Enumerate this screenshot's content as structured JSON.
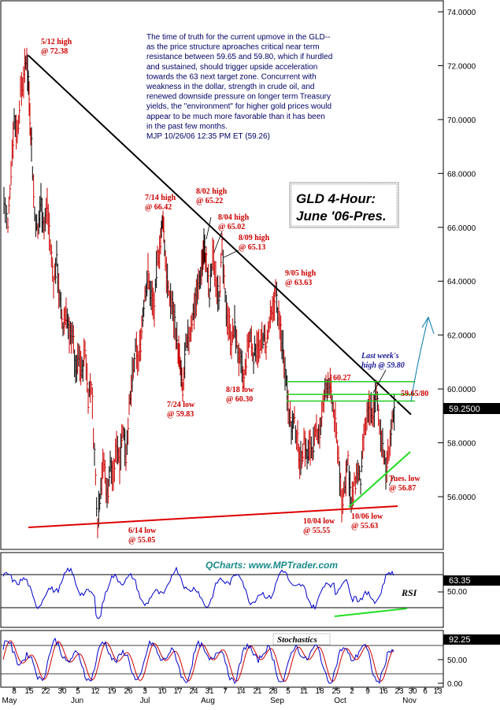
{
  "chart_data": [
    {
      "type": "line",
      "name": "price-panel",
      "title": "GLD 4-Hour:\nJune '06-Pres.",
      "ylim": [
        54.5,
        74.0
      ],
      "y_ticks": [
        "74.0000",
        "72.0000",
        "70.0000",
        "68.0000",
        "66.0000",
        "64.0000",
        "62.0000",
        "60.0000",
        "58.0000",
        "56.0000"
      ],
      "y_tick_values": [
        74,
        72,
        70,
        68,
        66,
        64,
        62,
        60,
        58,
        56
      ],
      "last_price_label": "59.2500",
      "last_price": 59.25,
      "x_tick_labels": [
        "8",
        "15",
        "22",
        "30",
        "5",
        "12",
        "19",
        "26",
        "3",
        "10",
        "17",
        "24",
        "31",
        "7",
        "14",
        "21",
        "28",
        "5",
        "11",
        "18",
        "25",
        "2",
        "9",
        "16",
        "23",
        "30",
        "6",
        "13"
      ],
      "month_labels": [
        "May",
        "Jun",
        "Jul",
        "Aug",
        "Sep",
        "Oct",
        "Nov"
      ],
      "commentary": [
        "The time of truth for the current upmove in the GLD--",
        "as the price structure aproaches critical near term",
        "resistance between 59.65 and 59.80, which if hurdled",
        "and sustained, should trigger upside acceleration",
        "towards the 63 next target zone. Concurrent with",
        "weakness in the dollar, strength in crude oil, and",
        "renewed downside pressure on longer term Treasury",
        "yields,  the \"environment\" for higher gold prices would",
        "appear to be much more favorable than it has been",
        "in the past few months.",
        "MJP 10/26/06  12:35 PM ET    (59.26)"
      ],
      "annotations": [
        {
          "text": [
            "5/12 high",
            "@ 72.38"
          ],
          "color": "red"
        },
        {
          "text": [
            "7/14 high",
            "@ 66.42"
          ],
          "color": "red"
        },
        {
          "text": [
            "8/02 high",
            "@ 65.22"
          ],
          "color": "red"
        },
        {
          "text": [
            "8/04 high",
            "@ 65.02"
          ],
          "color": "red"
        },
        {
          "text": [
            "8/09 high",
            "@ 65.13"
          ],
          "color": "red"
        },
        {
          "text": [
            "9/05 high",
            "@ 63.63"
          ],
          "color": "red"
        },
        {
          "text": [
            "7/24 low",
            "@ 59.83"
          ],
          "color": "red"
        },
        {
          "text": [
            "8/18 low",
            "@ 60.30"
          ],
          "color": "red"
        },
        {
          "text": [
            "6/14 low",
            "@ 55.05"
          ],
          "color": "red"
        },
        {
          "text": [
            "10/04 low",
            "@ 55.55"
          ],
          "color": "red"
        },
        {
          "text": [
            "10/06 low",
            "@ 55.63"
          ],
          "color": "red"
        },
        {
          "text": [
            "Tues. low",
            "@ 56.87"
          ],
          "color": "red"
        },
        {
          "text": [
            "60.27"
          ],
          "color": "red"
        },
        {
          "text": [
            "59.65/80"
          ],
          "color": "red"
        },
        {
          "text": [
            "Last week's",
            "high @ 59.80"
          ],
          "color": "blue"
        }
      ],
      "key_points": [
        {
          "date": "5/12",
          "value": 72.38
        },
        {
          "date": "6/14",
          "value": 55.05
        },
        {
          "date": "7/14",
          "value": 66.42
        },
        {
          "date": "7/24",
          "value": 59.83
        },
        {
          "date": "8/02",
          "value": 65.22
        },
        {
          "date": "8/04",
          "value": 65.02
        },
        {
          "date": "8/09",
          "value": 65.13
        },
        {
          "date": "8/18",
          "value": 60.3
        },
        {
          "date": "9/05",
          "value": 63.63
        },
        {
          "date": "10/04",
          "value": 55.55
        },
        {
          "date": "10/06",
          "value": 55.63
        },
        {
          "date": "10/24",
          "value": 56.87
        },
        {
          "value": 60.27
        },
        {
          "value": 59.8
        },
        {
          "value": 59.26
        }
      ]
    },
    {
      "type": "line",
      "name": "rsi-panel",
      "label": "RSI",
      "watermark": "QCharts: www.MPTrader.com",
      "y_ticks": [
        "50.00"
      ],
      "last_value_label": "63.35",
      "last_value": 63.35
    },
    {
      "type": "line",
      "name": "stochastics-panel",
      "label": "Stochastics",
      "y_ticks": [
        "50.00",
        "0.00"
      ],
      "last_value_label": "92.25",
      "last_value": 92.25
    }
  ],
  "colors": {
    "bars": "#cc0000",
    "bars_dark": "#000000",
    "trendline": "#000000",
    "support_line": "#dd0000",
    "resistance_lines": "#22cc22",
    "rising_support": "#22dd22",
    "rsi_line": "#0000cc",
    "stoch_k": "#0000cc",
    "stoch_d": "#cc0000",
    "arrow": "#0077aa",
    "label_blue": "#1a1a99"
  }
}
